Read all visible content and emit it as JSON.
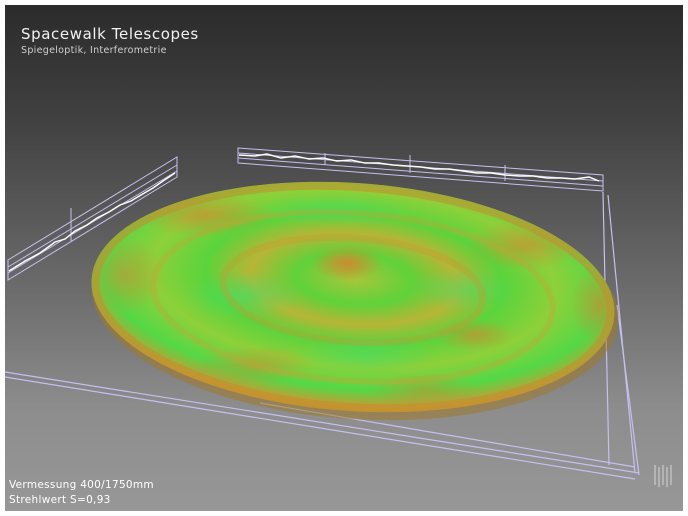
{
  "header": {
    "title": "Spacewalk Telescopes",
    "subtitle": "Spiegeloptik, Interferometrie"
  },
  "footer": {
    "measurement": "Vermessung 400/1750mm",
    "strehl": "Strehlwert S=0,93"
  },
  "colors": {
    "surface_green": "#5fd23a",
    "surface_orange": "#cf9a34",
    "frame_lines": "#c6c0f0",
    "profile_line": "#ffffff"
  }
}
